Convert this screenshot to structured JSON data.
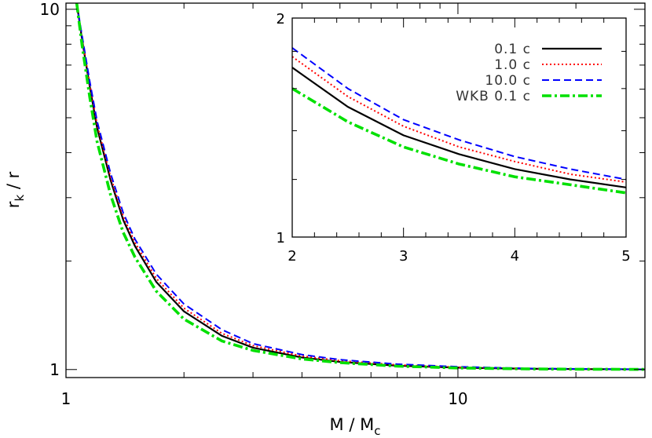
{
  "chart_data": [
    {
      "id": "main",
      "type": "line",
      "xlabel": "M / M",
      "xlabel_sub": "c",
      "ylabel": "r",
      "ylabel_sub": "k",
      "ylabel_suffix": " / r",
      "xscale": "log",
      "yscale": "log",
      "xlim": [
        1,
        30
      ],
      "ylim": [
        0.95,
        10.4
      ],
      "x_ticks": [
        {
          "v": 1,
          "label": "1"
        },
        {
          "v": 10,
          "label": "10"
        }
      ],
      "y_ticks": [
        {
          "v": 1,
          "label": "1"
        },
        {
          "v": 10,
          "label": "10"
        }
      ],
      "grid": false,
      "series": [
        {
          "name": "0.1 c",
          "color": "#000000",
          "style": "solid",
          "x": [
            1.065,
            1.1,
            1.15,
            1.2,
            1.3,
            1.4,
            1.5,
            1.7,
            2.0,
            2.5,
            3,
            4,
            5,
            7,
            10,
            15,
            20,
            30
          ],
          "y": [
            10.4,
            8.2,
            6.1,
            4.7,
            3.35,
            2.6,
            2.2,
            1.75,
            1.45,
            1.24,
            1.15,
            1.08,
            1.05,
            1.025,
            1.012,
            1.005,
            1.003,
            1.001
          ]
        },
        {
          "name": "1.0 c",
          "color": "#ff0000",
          "style": "dotted",
          "x": [
            1.065,
            1.1,
            1.15,
            1.2,
            1.3,
            1.4,
            1.5,
            1.7,
            2.0,
            2.5,
            3,
            4,
            5,
            7,
            10,
            15,
            20,
            30
          ],
          "y": [
            10.4,
            8.3,
            6.2,
            4.8,
            3.42,
            2.66,
            2.25,
            1.79,
            1.48,
            1.26,
            1.165,
            1.09,
            1.058,
            1.03,
            1.015,
            1.006,
            1.003,
            1.001
          ]
        },
        {
          "name": "10.0 c",
          "color": "#0000ff",
          "style": "dashed",
          "x": [
            1.065,
            1.1,
            1.15,
            1.2,
            1.3,
            1.4,
            1.5,
            1.7,
            2.0,
            2.5,
            3,
            4,
            5,
            7,
            10,
            15,
            20,
            30
          ],
          "y": [
            10.4,
            8.4,
            6.3,
            4.9,
            3.5,
            2.72,
            2.3,
            1.84,
            1.52,
            1.29,
            1.18,
            1.1,
            1.065,
            1.035,
            1.018,
            1.007,
            1.004,
            1.001
          ]
        },
        {
          "name": "WKB 0.1 c",
          "color": "#00e000",
          "style": "dashdot",
          "x": [
            1.065,
            1.1,
            1.15,
            1.2,
            1.3,
            1.4,
            1.5,
            1.7,
            2.0,
            2.5,
            3,
            4,
            5,
            7,
            10,
            15,
            20,
            30
          ],
          "y": [
            10.4,
            7.9,
            5.7,
            4.3,
            3.05,
            2.4,
            2.05,
            1.65,
            1.38,
            1.2,
            1.13,
            1.07,
            1.045,
            1.022,
            1.01,
            1.004,
            1.002,
            1.001
          ]
        }
      ]
    },
    {
      "id": "inset",
      "type": "line",
      "xscale": "linear",
      "yscale": "log",
      "xlim": [
        2,
        5
      ],
      "ylim": [
        1,
        2
      ],
      "x_ticks": [
        {
          "v": 2,
          "label": "2"
        },
        {
          "v": 3,
          "label": "3"
        },
        {
          "v": 4,
          "label": "4"
        },
        {
          "v": 5,
          "label": "5"
        }
      ],
      "y_ticks": [
        {
          "v": 1,
          "label": "1"
        },
        {
          "v": 2,
          "label": "2"
        }
      ],
      "legend": "top-right",
      "grid": false,
      "series": [
        {
          "name": "0.1 c",
          "color": "#000000",
          "style": "solid",
          "x": [
            2,
            2.5,
            3,
            3.5,
            4,
            4.5,
            5
          ],
          "y": [
            1.71,
            1.51,
            1.38,
            1.3,
            1.24,
            1.2,
            1.17
          ]
        },
        {
          "name": "1.0 c",
          "color": "#ff0000",
          "style": "dotted",
          "x": [
            2,
            2.5,
            3,
            3.5,
            4,
            4.5,
            5
          ],
          "y": [
            1.77,
            1.56,
            1.42,
            1.33,
            1.27,
            1.22,
            1.19
          ]
        },
        {
          "name": "10.0 c",
          "color": "#0000ff",
          "style": "dashed",
          "x": [
            2,
            2.5,
            3,
            3.5,
            4,
            4.5,
            5
          ],
          "y": [
            1.82,
            1.6,
            1.45,
            1.36,
            1.29,
            1.24,
            1.2
          ]
        },
        {
          "name": "WKB 0.1 c",
          "color": "#00e000",
          "style": "dashdot",
          "x": [
            2,
            2.5,
            3,
            3.5,
            4,
            4.5,
            5
          ],
          "y": [
            1.6,
            1.44,
            1.33,
            1.26,
            1.21,
            1.18,
            1.15
          ]
        }
      ]
    }
  ]
}
